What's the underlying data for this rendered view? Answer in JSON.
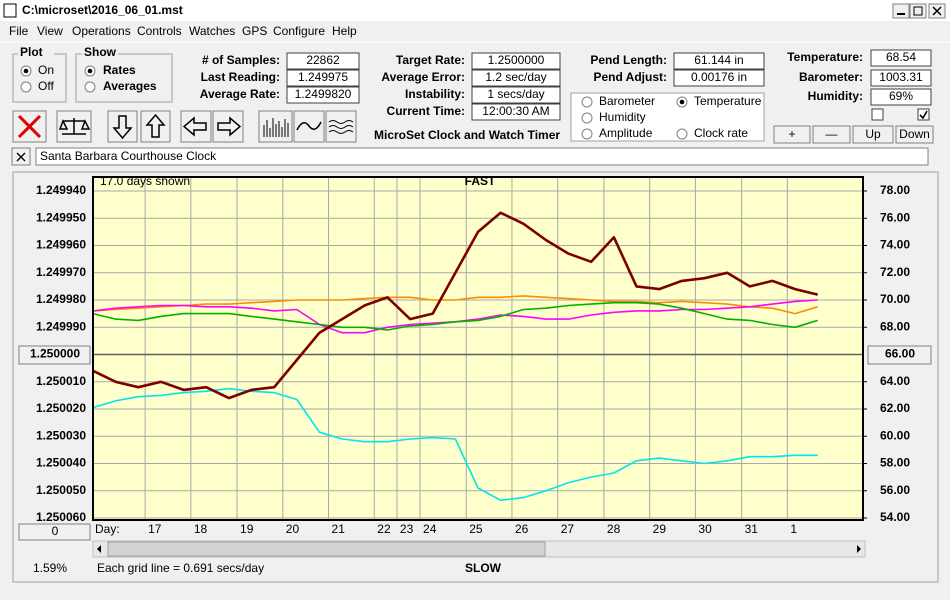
{
  "window": {
    "title": "C:\\microset\\2016_06_01.mst"
  },
  "menu": [
    "File",
    "View",
    "Operations",
    "Controls",
    "Watches",
    "GPS",
    "Configure",
    "Help"
  ],
  "plot_group": {
    "title": "Plot",
    "options": [
      "On",
      "Off"
    ],
    "selected": 0
  },
  "show_group": {
    "title": "Show",
    "options": [
      "Rates",
      "Averages"
    ],
    "selected": 0
  },
  "fields": [
    {
      "label": "# of Samples:",
      "value": "22862"
    },
    {
      "label": "Last Reading:",
      "value": "1.249975"
    },
    {
      "label": "Average Rate:",
      "value": "1.2499820"
    },
    {
      "label": "Target Rate:",
      "value": "1.2500000"
    },
    {
      "label": "Average Error:",
      "value": "1.2 sec/day"
    },
    {
      "label": "Instability:",
      "value": "1 secs/day"
    },
    {
      "label": "Current Time:",
      "value": "12:00:30 AM"
    },
    {
      "label": "Pend Length:",
      "value": "61.144 in"
    },
    {
      "label": "Pend Adjust:",
      "value": "0.00176 in"
    },
    {
      "label": "Temperature:",
      "value": "68.54"
    },
    {
      "label": "Barometer:",
      "value": "1003.31"
    },
    {
      "label": "Humidity:",
      "value": "69%"
    }
  ],
  "app_name": "MicroSet Clock and Watch Timer",
  "sensor_options": {
    "labels": [
      "Barometer",
      "Temperature",
      "Humidity",
      "Amplitude",
      "Clock rate"
    ],
    "colors": [
      "#ff8c00",
      "#00a000",
      "#d000d0",
      "#00c8e0",
      "#7b0000"
    ],
    "selected": 1
  },
  "checkboxes": [
    false,
    true
  ],
  "adjust_buttons": [
    "+",
    "—",
    "Up",
    "Down"
  ],
  "clock_name": "Santa Barbara Courthouse Clock",
  "chart": {
    "type": "line",
    "days_shown": "17.0 days shown",
    "top_label": "FAST",
    "bottom_label": "SLOW",
    "day_label": "Day:",
    "zoom_button": "0",
    "percent": "1.59%",
    "grid_note": "Each grid line = 0.691 secs/day",
    "center_left": {
      "value": 1.25,
      "label": "1.250000"
    },
    "center_right": {
      "value": 66,
      "label": "66.00"
    },
    "xlim": [
      0,
      17
    ],
    "xticks": [
      {
        "value": 1.15,
        "label": "17"
      },
      {
        "value": 2.16,
        "label": "18"
      },
      {
        "value": 3.18,
        "label": "19"
      },
      {
        "value": 4.19,
        "label": "20"
      },
      {
        "value": 5.2,
        "label": "21"
      },
      {
        "value": 6.21,
        "label": "22"
      },
      {
        "value": 6.71,
        "label": "23"
      },
      {
        "value": 7.22,
        "label": "24"
      },
      {
        "value": 8.24,
        "label": "25"
      },
      {
        "value": 9.25,
        "label": "26"
      },
      {
        "value": 10.26,
        "label": "27"
      },
      {
        "value": 11.28,
        "label": "28"
      },
      {
        "value": 12.29,
        "label": "29"
      },
      {
        "value": 13.3,
        "label": "30"
      },
      {
        "value": 14.32,
        "label": "31"
      },
      {
        "value": 15.33,
        "label": "1"
      }
    ],
    "ylim": [
      1.25006,
      1.24994
    ],
    "yticks": [
      {
        "value": 1.24994,
        "label": "1.249940"
      },
      {
        "value": 1.24995,
        "label": "1.249950"
      },
      {
        "value": 1.24996,
        "label": "1.249960"
      },
      {
        "value": 1.24997,
        "label": "1.249970"
      },
      {
        "value": 1.24998,
        "label": "1.249980"
      },
      {
        "value": 1.24999,
        "label": "1.249990"
      },
      {
        "value": 1.25001,
        "label": "1.250010"
      },
      {
        "value": 1.25002,
        "label": "1.250020"
      },
      {
        "value": 1.25003,
        "label": "1.250030"
      },
      {
        "value": 1.25004,
        "label": "1.250040"
      },
      {
        "value": 1.25005,
        "label": "1.250050"
      },
      {
        "value": 1.25006,
        "label": "1.250060"
      }
    ],
    "y2lim": [
      54,
      78
    ],
    "y2ticks": [
      {
        "value": 78,
        "label": "78.00"
      },
      {
        "value": 76,
        "label": "76.00"
      },
      {
        "value": 74,
        "label": "74.00"
      },
      {
        "value": 72,
        "label": "72.00"
      },
      {
        "value": 70,
        "label": "70.00"
      },
      {
        "value": 68,
        "label": "68.00"
      },
      {
        "value": 64,
        "label": "64.00"
      },
      {
        "value": 62,
        "label": "62.00"
      },
      {
        "value": 60,
        "label": "60.00"
      },
      {
        "value": 58,
        "label": "58.00"
      },
      {
        "value": 56,
        "label": "56.00"
      },
      {
        "value": 54,
        "label": "54.00"
      }
    ],
    "grid": true,
    "x": [
      0,
      0.5,
      1,
      1.5,
      2,
      2.5,
      3,
      3.5,
      4,
      4.5,
      5,
      5.5,
      6,
      6.5,
      7,
      7.5,
      8,
      8.5,
      9,
      9.5,
      10,
      10.5,
      11,
      11.5,
      12,
      12.5,
      13,
      13.5,
      14,
      14.5,
      15,
      15.5,
      16
    ],
    "series": [
      {
        "color": "#ff8c00",
        "axis": "y2",
        "values": [
          69.2,
          69.3,
          69.4,
          69.5,
          69.6,
          69.7,
          69.7,
          69.8,
          69.9,
          70.0,
          70.0,
          70.0,
          70.1,
          70.2,
          70.2,
          70.0,
          70.0,
          70.2,
          70.2,
          70.3,
          70.2,
          70.1,
          70.0,
          69.9,
          69.9,
          69.8,
          69.9,
          69.8,
          69.7,
          69.5,
          69.4,
          69.0,
          69.5
        ]
      },
      {
        "color": "#ff00ff",
        "axis": "y2",
        "values": [
          69.2,
          69.4,
          69.5,
          69.6,
          69.6,
          69.5,
          69.5,
          69.4,
          69.2,
          69.3,
          68.2,
          67.6,
          67.6,
          68.0,
          68.2,
          68.3,
          68.4,
          68.6,
          68.9,
          68.8,
          68.6,
          68.6,
          68.9,
          69.1,
          69.2,
          69.2,
          69.3,
          69.3,
          69.4,
          69.5,
          69.7,
          69.9,
          70.0
        ]
      },
      {
        "color": "#00b000",
        "axis": "y2",
        "values": [
          69.0,
          68.6,
          68.5,
          68.8,
          69.0,
          69.0,
          69.0,
          68.8,
          68.6,
          68.4,
          68.2,
          68.0,
          68.0,
          67.8,
          68.1,
          68.2,
          68.4,
          68.5,
          68.8,
          69.3,
          69.4,
          69.6,
          69.7,
          69.8,
          69.8,
          69.7,
          69.4,
          69.0,
          68.6,
          68.5,
          68.2,
          68.0,
          68.5
        ]
      },
      {
        "color": "#00e5ee",
        "axis": "y2",
        "values": [
          62.1,
          62.6,
          62.9,
          63.0,
          63.2,
          63.3,
          63.5,
          63.3,
          63.2,
          62.7,
          60.3,
          59.8,
          59.6,
          59.6,
          59.8,
          59.9,
          59.8,
          56.2,
          55.3,
          55.5,
          56.0,
          56.6,
          57.0,
          57.3,
          58.2,
          58.4,
          58.2,
          58.0,
          58.2,
          58.5,
          58.5,
          58.6,
          58.6
        ]
      },
      {
        "color": "#7b0000",
        "axis": "y",
        "values": [
          1.250006,
          1.25001,
          1.250012,
          1.25001,
          1.250013,
          1.250012,
          1.250016,
          1.250013,
          1.250012,
          1.250002,
          1.249992,
          1.249987,
          1.249982,
          1.249979,
          1.249987,
          1.249985,
          1.24997,
          1.249955,
          1.249948,
          1.249952,
          1.249958,
          1.249963,
          1.249966,
          1.249957,
          1.249975,
          1.249976,
          1.249973,
          1.249972,
          1.24997,
          1.249975,
          1.249973,
          1.249976,
          1.249978
        ]
      }
    ]
  }
}
